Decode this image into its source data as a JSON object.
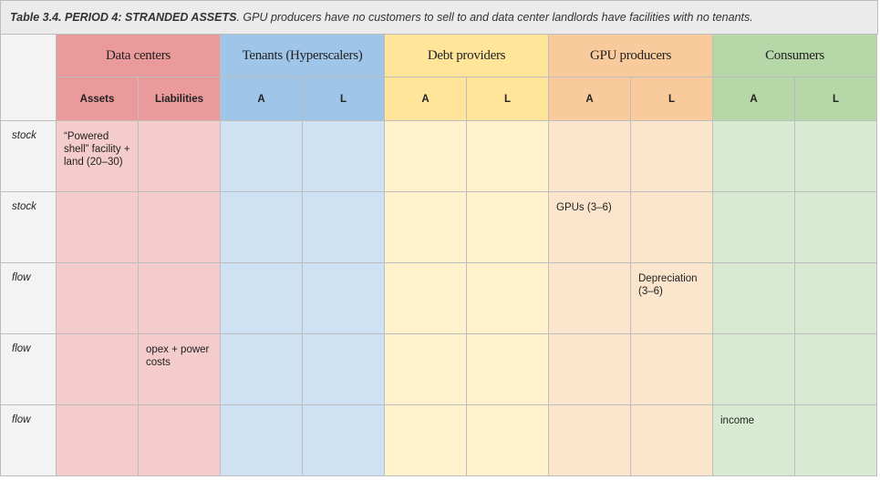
{
  "caption": {
    "label": "Table 3.4. PERIOD 4: STRANDED ASSETS",
    "text": ". GPU producers have no customers to sell to and data center landlords have facilities with no tenants."
  },
  "table": {
    "groups": [
      {
        "name": "Data centers",
        "sub": [
          "Assets",
          "Liabilities"
        ]
      },
      {
        "name": "Tenants (Hyperscalers)",
        "sub": [
          "A",
          "L"
        ]
      },
      {
        "name": "Debt providers",
        "sub": [
          "A",
          "L"
        ]
      },
      {
        "name": "GPU producers",
        "sub": [
          "A",
          "L"
        ]
      },
      {
        "name": "Consumers",
        "sub": [
          "A",
          "L"
        ]
      }
    ],
    "rows": [
      {
        "kind": "stock",
        "cells": [
          "“Powered shell” facility + land (20–30)",
          null,
          null,
          null,
          null,
          null,
          null,
          null,
          null,
          null
        ]
      },
      {
        "kind": "stock",
        "cells": [
          null,
          null,
          null,
          null,
          null,
          null,
          "GPUs (3–6)",
          null,
          null,
          null
        ]
      },
      {
        "kind": "flow",
        "cells": [
          null,
          null,
          null,
          null,
          null,
          null,
          null,
          "Depreciation (3–6)",
          null,
          null
        ]
      },
      {
        "kind": "flow",
        "cells": [
          null,
          "opex + power costs",
          null,
          null,
          null,
          null,
          null,
          null,
          null,
          null
        ]
      },
      {
        "kind": "flow",
        "cells": [
          null,
          null,
          null,
          null,
          null,
          null,
          null,
          null,
          "income",
          null
        ]
      }
    ]
  }
}
